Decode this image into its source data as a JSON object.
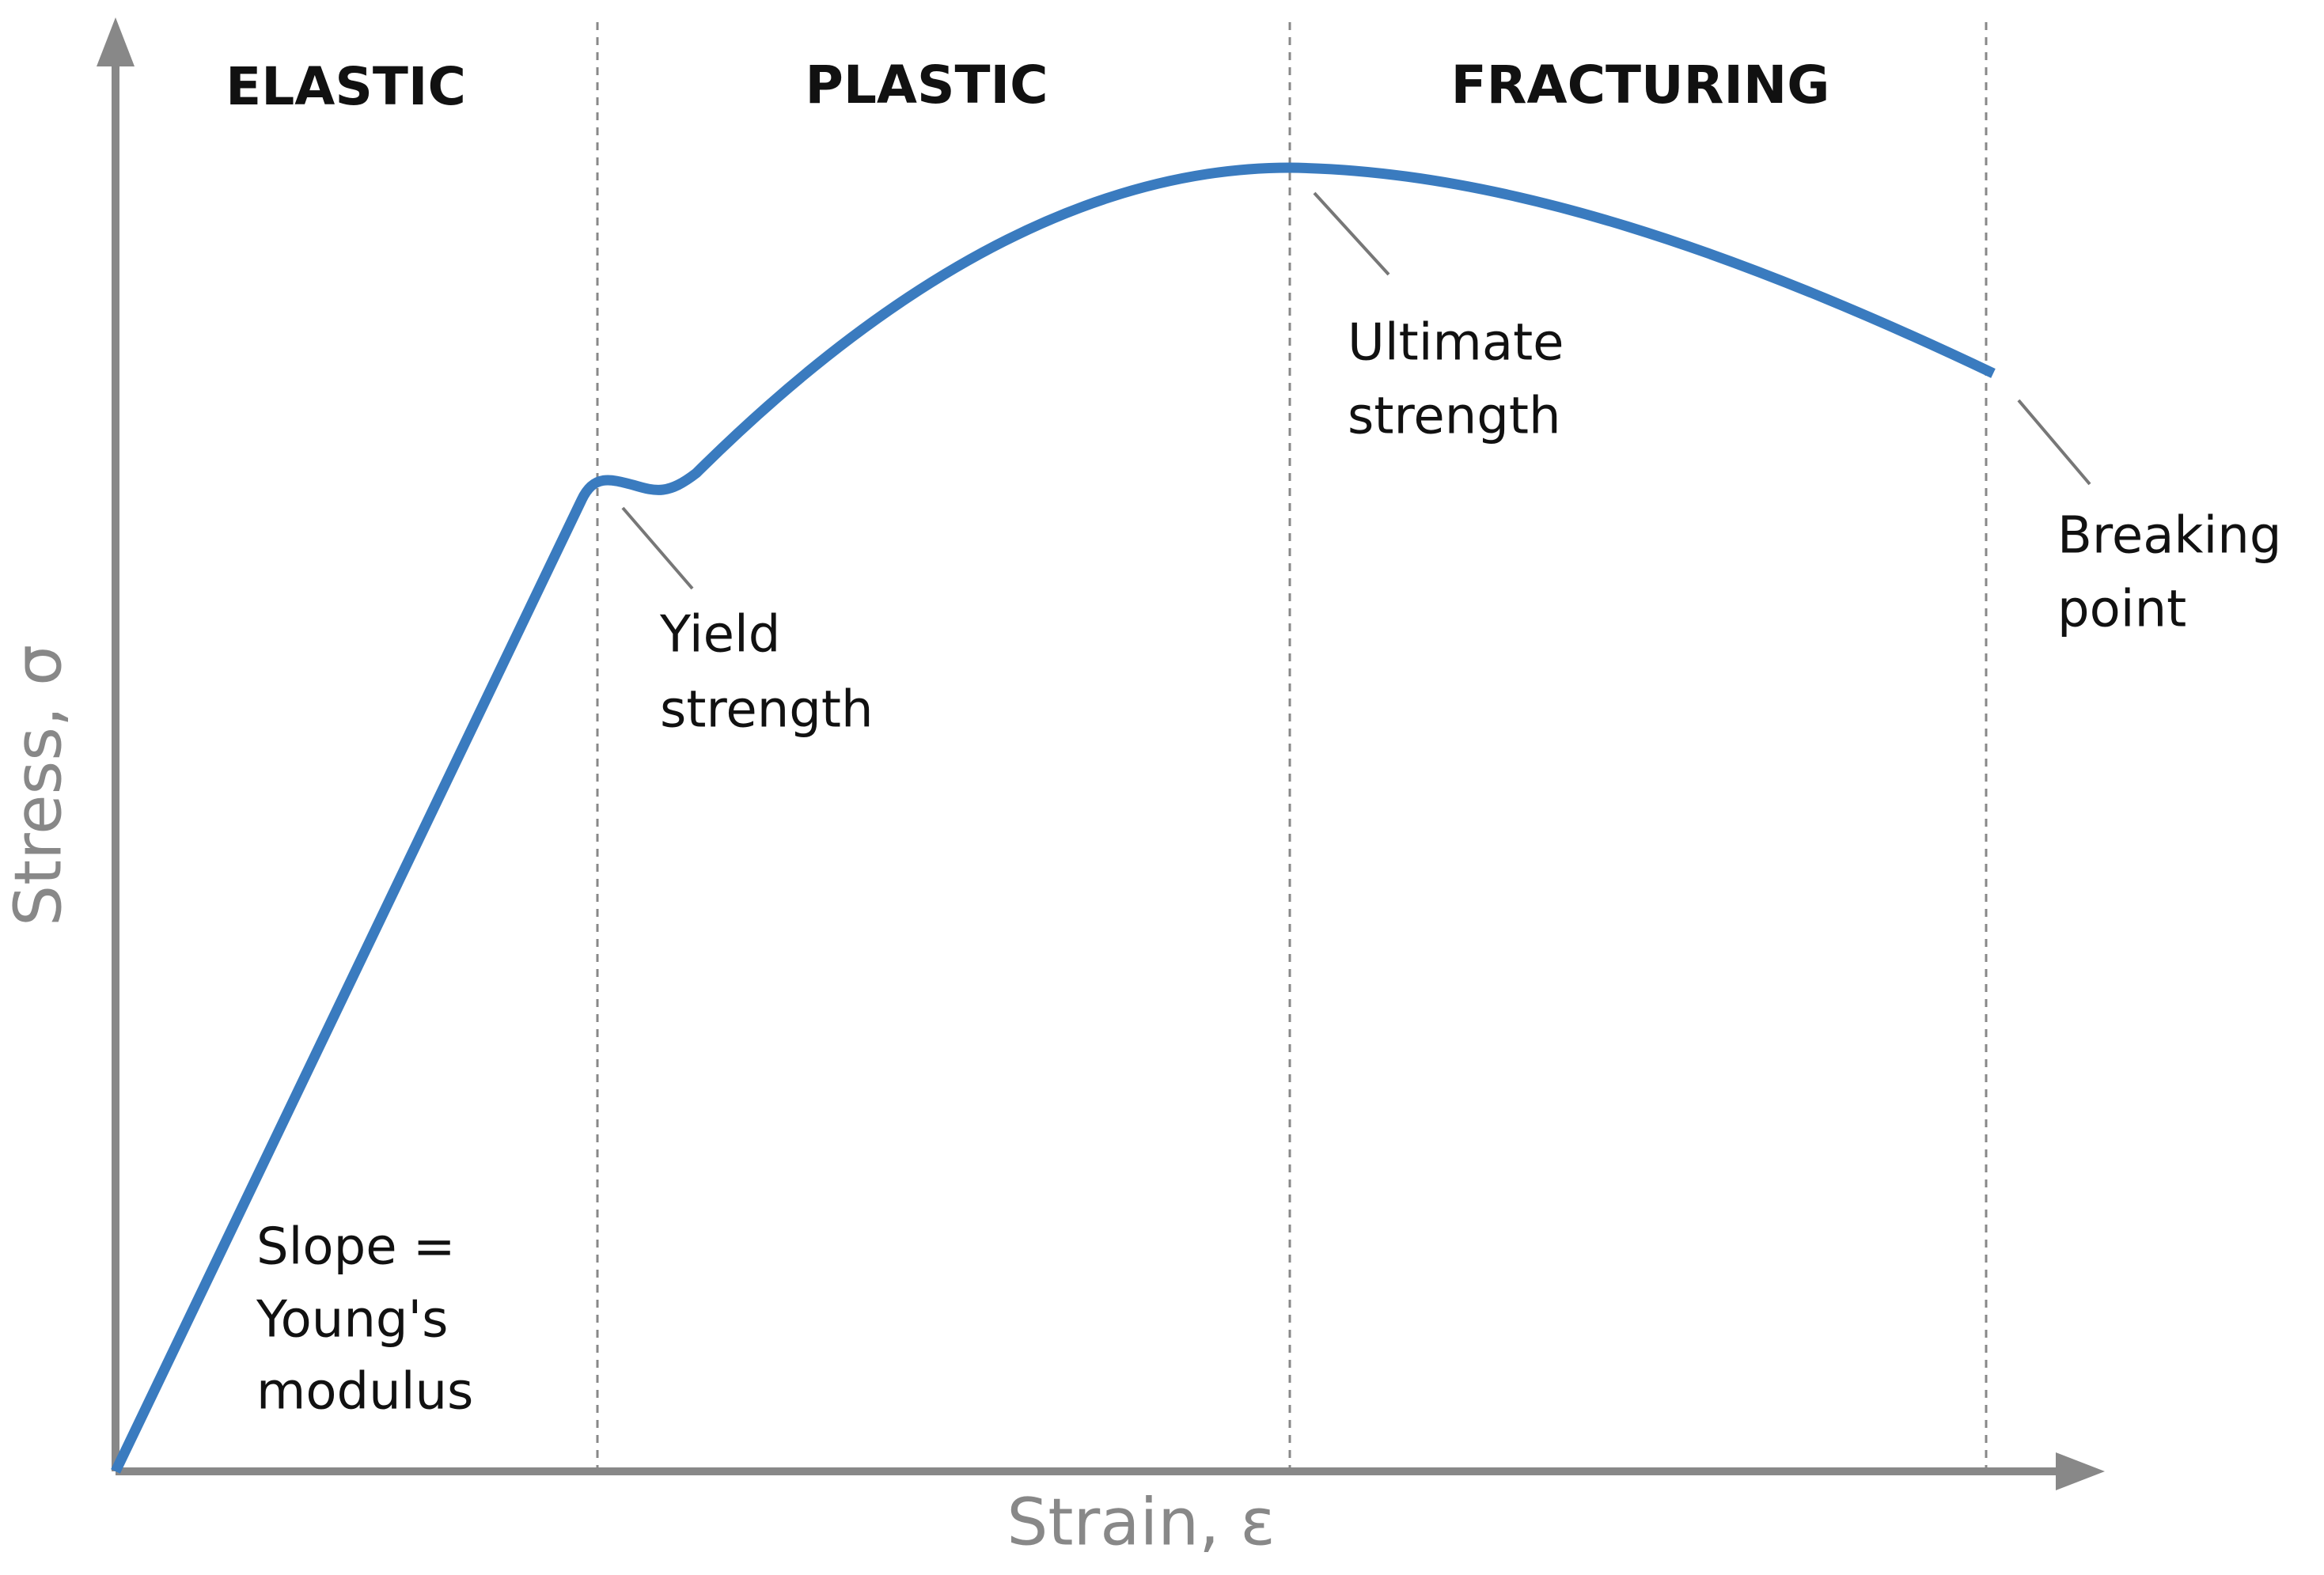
{
  "regions": [
    "ELASTIC",
    "PLASTIC",
    "FRACTURING"
  ],
  "annotations": {
    "yield": [
      "Yield",
      "strength"
    ],
    "ultimate": [
      "Ultimate",
      "strength"
    ],
    "breaking": [
      "Breaking",
      "point"
    ],
    "slope": [
      "Slope =",
      "Young's",
      "modulus"
    ]
  },
  "x_axis_label": "Strain, ε",
  "y_axis_label": "Stress, σ"
}
